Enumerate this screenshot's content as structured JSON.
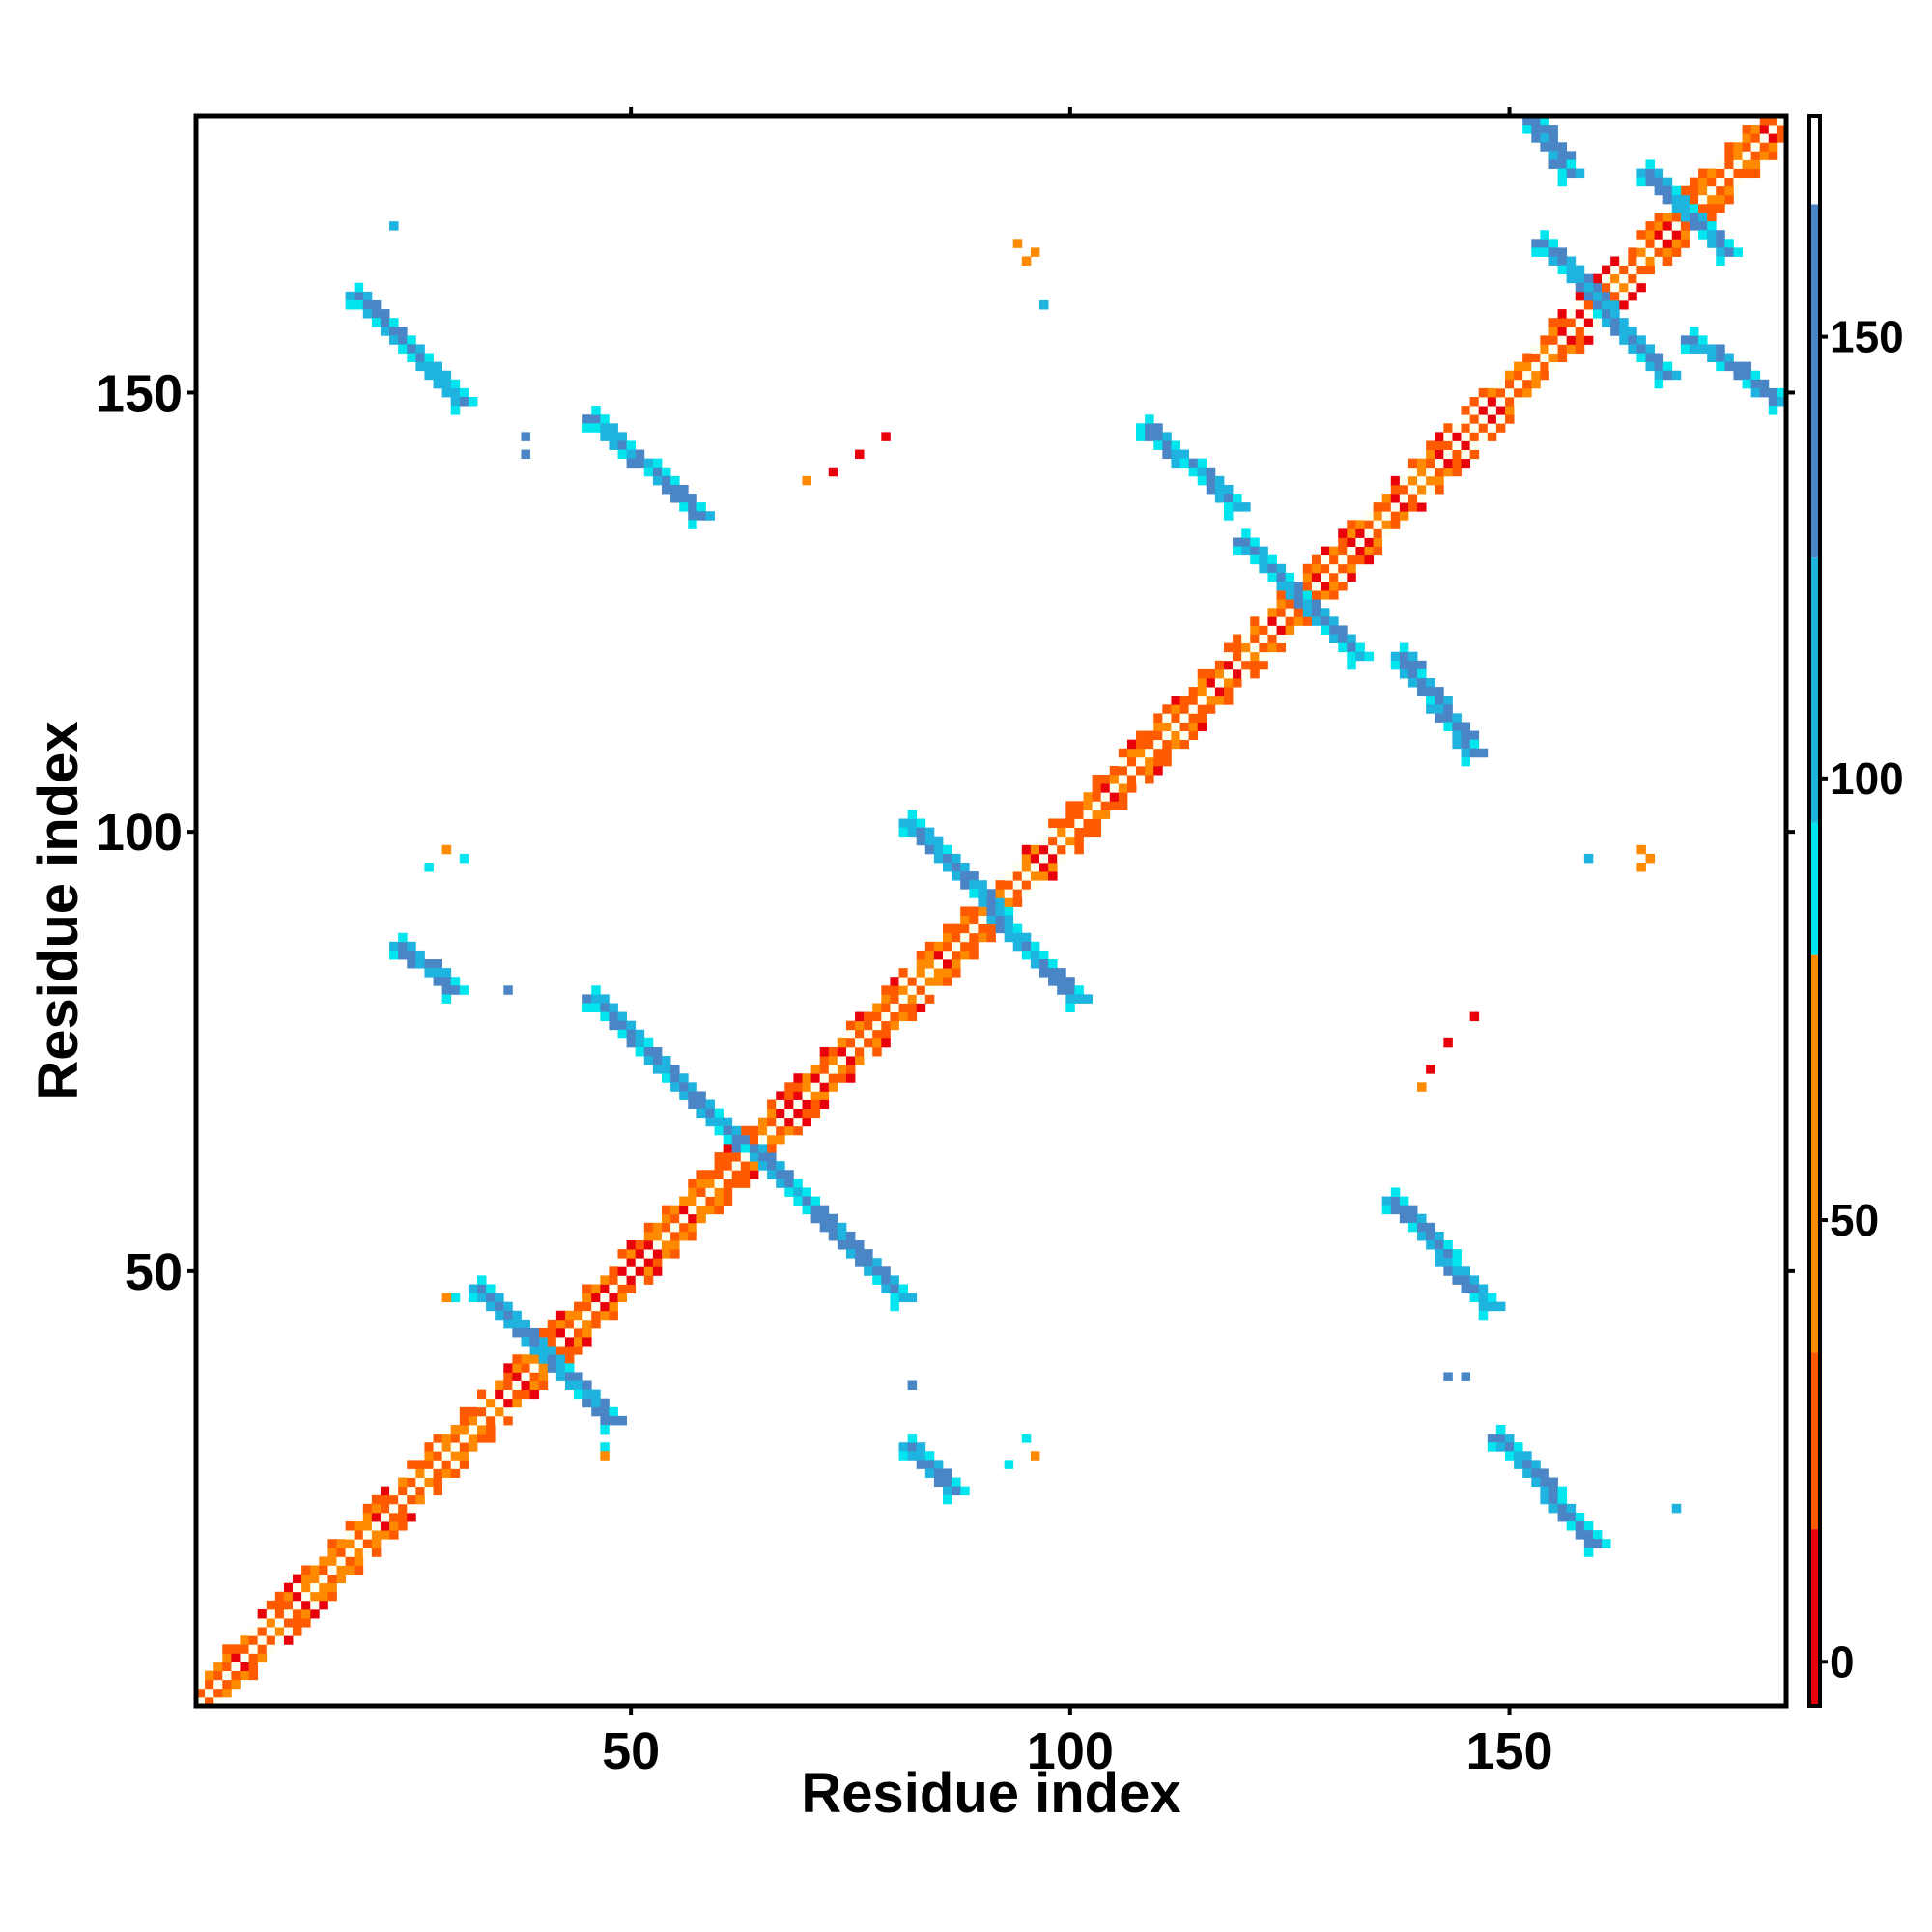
{
  "chart_data": {
    "type": "heatmap",
    "title": "",
    "xlabel": "Residue index",
    "ylabel": "Residue index",
    "xlim": [
      1,
      181
    ],
    "ylim": [
      1,
      181
    ],
    "x_ticks": [
      50,
      100,
      150
    ],
    "y_ticks": [
      50,
      100,
      150
    ],
    "grid": false,
    "legend": "colorbar-right",
    "colorbar": {
      "range": [
        -5,
        175
      ],
      "ticks": [
        0,
        50,
        100,
        150
      ],
      "stops": [
        {
          "from": -5,
          "to": 15,
          "color": "#e8000b"
        },
        {
          "from": 15,
          "to": 35,
          "color": "#ff5a00"
        },
        {
          "from": 35,
          "to": 80,
          "color": "#ff8a00"
        },
        {
          "from": 80,
          "to": 95,
          "color": "#00e5ee"
        },
        {
          "from": 95,
          "to": 125,
          "color": "#1fb4e0"
        },
        {
          "from": 125,
          "to": 165,
          "color": "#4a86c5"
        },
        {
          "from": 165,
          "to": 175,
          "color": "#ffffff"
        }
      ]
    },
    "colors": {
      "diagonal": "#fffff0",
      "near_diagonal_red": "#e8000b",
      "near_diagonal_orange": "#ff5a00",
      "near_diagonal_amber": "#ff8a00",
      "cyan": "#00e5ee",
      "light_blue": "#1fb4e0",
      "steel_blue": "#4a86c5"
    },
    "antiparallel_bands": [
      {
        "start": [
          46,
          81
        ],
        "end": [
          81,
          47
        ]
      },
      {
        "start": [
          82,
          101
        ],
        "end": [
          101,
          81
        ]
      },
      {
        "start": [
          19,
          161
        ],
        "end": [
          31,
          149
        ]
      },
      {
        "start": [
          46,
          147
        ],
        "end": [
          58,
          136
        ]
      },
      {
        "start": [
          109,
          146
        ],
        "end": [
          119,
          137
        ]
      },
      {
        "start": [
          137,
          58
        ],
        "end": [
          148,
          46
        ]
      },
      {
        "start": [
          138,
          120
        ],
        "end": [
          146,
          109
        ]
      },
      {
        "start": [
          149,
          31
        ],
        "end": [
          160,
          19
        ]
      },
      {
        "start": [
          154,
          167
        ],
        "end": [
          168,
          152
        ]
      },
      {
        "start": [
          153,
          181
        ],
        "end": [
          157,
          175
        ]
      },
      {
        "start": [
          171,
          156
        ],
        "end": [
          181,
          149
        ]
      },
      {
        "start": [
          166,
          175
        ],
        "end": [
          175,
          166
        ]
      },
      {
        "start": [
          24,
          87
        ],
        "end": [
          30,
          82
        ]
      },
      {
        "start": [
          82,
          30
        ],
        "end": [
          87,
          25
        ]
      },
      {
        "start": [
          33,
          48
        ],
        "end": [
          48,
          33
        ]
      },
      {
        "start": [
          120,
          133
        ],
        "end": [
          133,
          120
        ]
      }
    ],
    "isolated_contacts": [
      {
        "x": 94,
        "y": 167,
        "value": 35
      },
      {
        "x": 96,
        "y": 166,
        "value": 40
      },
      {
        "x": 95,
        "y": 165,
        "value": 35
      },
      {
        "x": 165,
        "y": 98,
        "value": 35
      },
      {
        "x": 166,
        "y": 97,
        "value": 40
      },
      {
        "x": 165,
        "y": 96,
        "value": 35
      },
      {
        "x": 70,
        "y": 140,
        "value": 60
      },
      {
        "x": 73,
        "y": 141,
        "value": 10
      },
      {
        "x": 76,
        "y": 143,
        "value": 10
      },
      {
        "x": 79,
        "y": 145,
        "value": 10
      },
      {
        "x": 140,
        "y": 71,
        "value": 60
      },
      {
        "x": 141,
        "y": 73,
        "value": 10
      },
      {
        "x": 143,
        "y": 76,
        "value": 10
      },
      {
        "x": 146,
        "y": 79,
        "value": 10
      },
      {
        "x": 23,
        "y": 169,
        "value": 110
      },
      {
        "x": 97,
        "y": 160,
        "value": 110
      },
      {
        "x": 38,
        "y": 145,
        "value": 140
      },
      {
        "x": 38,
        "y": 143,
        "value": 140
      },
      {
        "x": 29,
        "y": 98,
        "value": 60
      },
      {
        "x": 31,
        "y": 97,
        "value": 90
      },
      {
        "x": 27,
        "y": 96,
        "value": 90
      },
      {
        "x": 36,
        "y": 82,
        "value": 140
      },
      {
        "x": 159,
        "y": 97,
        "value": 110
      },
      {
        "x": 82,
        "y": 37,
        "value": 140
      },
      {
        "x": 96,
        "y": 29,
        "value": 60
      },
      {
        "x": 95,
        "y": 31,
        "value": 90
      },
      {
        "x": 93,
        "y": 28,
        "value": 90
      },
      {
        "x": 145,
        "y": 38,
        "value": 140
      },
      {
        "x": 143,
        "y": 38,
        "value": 140
      },
      {
        "x": 169,
        "y": 23,
        "value": 110
      },
      {
        "x": 47,
        "y": 30,
        "value": 90
      },
      {
        "x": 47,
        "y": 29,
        "value": 60
      },
      {
        "x": 30,
        "y": 47,
        "value": 90
      },
      {
        "x": 29,
        "y": 47,
        "value": 60
      }
    ]
  }
}
